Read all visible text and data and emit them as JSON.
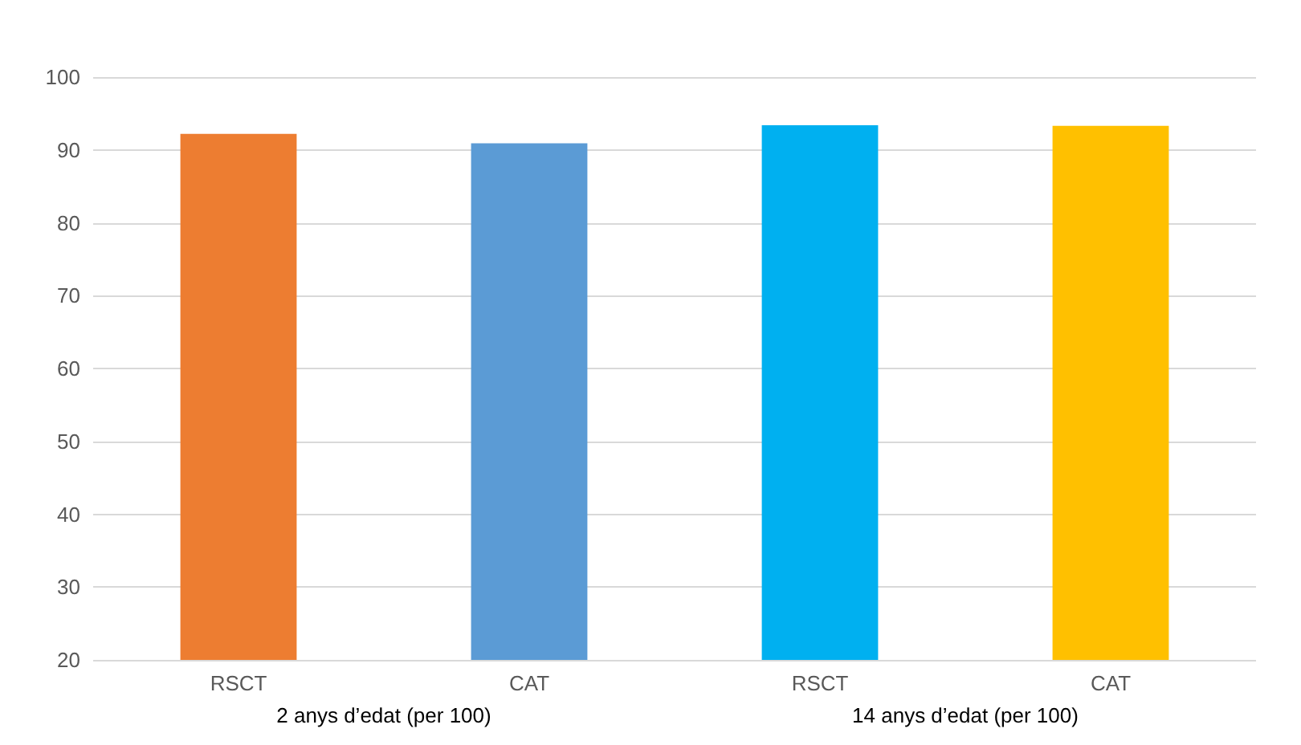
{
  "chart_data": {
    "type": "bar",
    "categories": [
      "RSCT",
      "CAT",
      "RSCT",
      "CAT"
    ],
    "values": [
      92.2,
      90.9,
      93.4,
      93.3
    ],
    "colors": [
      "#ed7d31",
      "#5b9bd5",
      "#00b0f0",
      "#ffc000"
    ],
    "ylim": [
      20,
      100
    ],
    "yticks": [
      20,
      30,
      40,
      50,
      60,
      70,
      80,
      90,
      100
    ],
    "grid": "y",
    "annotations": [
      "2 anys d’edat (per 100)",
      "14 anys d’edat (per 100)"
    ]
  }
}
